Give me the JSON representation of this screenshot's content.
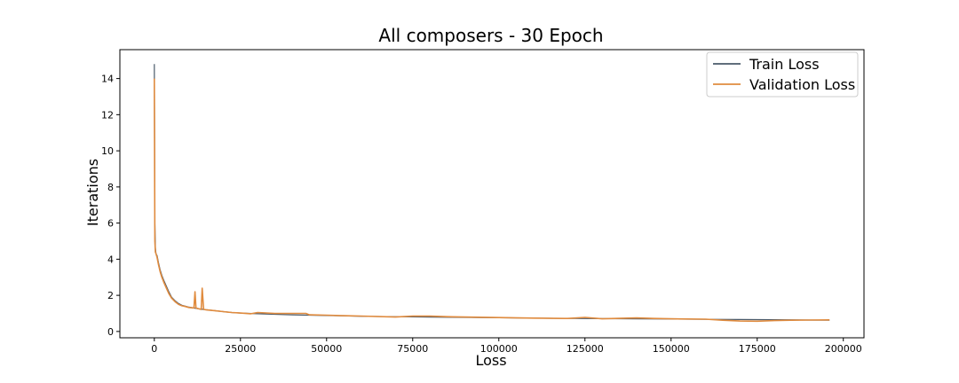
{
  "chart_data": {
    "type": "line",
    "title": "All composers - 30 Epoch",
    "xlabel": "Loss",
    "ylabel": "Iterations",
    "xlim": [
      -10000,
      206000
    ],
    "ylim": [
      -0.35,
      15.6
    ],
    "xticks": [
      0,
      25000,
      50000,
      75000,
      100000,
      125000,
      150000,
      175000,
      200000
    ],
    "xtick_labels": [
      "0",
      "25000",
      "50000",
      "75000",
      "100000",
      "125000",
      "150000",
      "175000",
      "200000"
    ],
    "yticks": [
      0,
      2,
      4,
      6,
      8,
      10,
      12,
      14
    ],
    "ytick_labels": [
      "0",
      "2",
      "4",
      "6",
      "8",
      "10",
      "12",
      "14"
    ],
    "grid": false,
    "legend_position": "top-right",
    "series": [
      {
        "name": "Train Loss",
        "color": "#4a5a6a",
        "x": [
          0,
          150,
          300,
          500,
          800,
          1200,
          1700,
          2200,
          2800,
          3500,
          4200,
          5000,
          6000,
          7000,
          8000,
          9000,
          10000,
          11500,
          13000,
          15000,
          17500,
          20000,
          22500,
          25000,
          30000,
          35000,
          40000,
          45000,
          50000,
          55000,
          60000,
          70000,
          80000,
          90000,
          100000,
          110000,
          120000,
          130000,
          140000,
          150000,
          160000,
          170000,
          180000,
          190000,
          196000
        ],
        "y": [
          14.8,
          6.0,
          4.6,
          4.3,
          4.2,
          3.8,
          3.4,
          3.1,
          2.8,
          2.5,
          2.2,
          1.9,
          1.7,
          1.55,
          1.45,
          1.4,
          1.35,
          1.3,
          1.25,
          1.2,
          1.15,
          1.1,
          1.05,
          1.02,
          0.98,
          0.95,
          0.92,
          0.9,
          0.88,
          0.86,
          0.84,
          0.82,
          0.8,
          0.78,
          0.76,
          0.74,
          0.72,
          0.71,
          0.7,
          0.69,
          0.67,
          0.66,
          0.65,
          0.63,
          0.62
        ]
      },
      {
        "name": "Validation Loss",
        "color": "#e08b3e",
        "x": [
          0,
          150,
          300,
          500,
          800,
          1200,
          1700,
          2200,
          2800,
          3500,
          4200,
          5000,
          6000,
          7000,
          8000,
          9000,
          10000,
          11500,
          11800,
          12100,
          13000,
          13600,
          13900,
          14300,
          15000,
          17500,
          20000,
          22500,
          25000,
          28000,
          30000,
          35000,
          40000,
          44000,
          45000,
          50000,
          55000,
          60000,
          70000,
          75000,
          80000,
          85000,
          90000,
          100000,
          110000,
          120000,
          125000,
          130000,
          140000,
          145000,
          150000,
          160000,
          165000,
          170000,
          175000,
          180000,
          185000,
          190000,
          196000
        ],
        "y": [
          14.0,
          5.0,
          4.4,
          4.3,
          4.1,
          3.7,
          3.3,
          3.0,
          2.7,
          2.4,
          2.1,
          1.85,
          1.65,
          1.5,
          1.42,
          1.38,
          1.33,
          1.3,
          2.2,
          1.3,
          1.25,
          1.22,
          2.4,
          1.22,
          1.2,
          1.15,
          1.1,
          1.05,
          1.02,
          0.98,
          1.05,
          1.0,
          1.0,
          1.0,
          0.92,
          0.9,
          0.87,
          0.85,
          0.8,
          0.85,
          0.85,
          0.82,
          0.8,
          0.77,
          0.74,
          0.72,
          0.78,
          0.7,
          0.75,
          0.72,
          0.7,
          0.68,
          0.62,
          0.58,
          0.57,
          0.6,
          0.62,
          0.63,
          0.64
        ]
      }
    ]
  }
}
